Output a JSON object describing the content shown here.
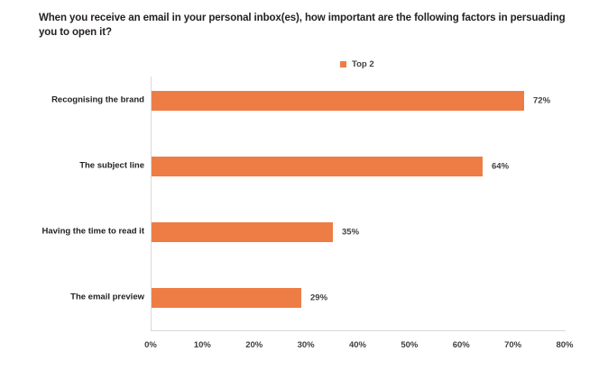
{
  "chart_data": {
    "type": "bar",
    "orientation": "horizontal",
    "title": "When you receive an email in your personal inbox(es), how important are the following factors in persuading you to open it?",
    "categories": [
      "Recognising the brand",
      "The subject line",
      "Having the time to read it",
      "The email preview"
    ],
    "series": [
      {
        "name": "Top 2",
        "values": [
          72,
          64,
          35,
          29
        ]
      }
    ],
    "data_labels": [
      "72%",
      "64%",
      "35%",
      "29%"
    ],
    "x_tick_labels": [
      "0%",
      "10%",
      "20%",
      "30%",
      "40%",
      "50%",
      "60%",
      "70%",
      "80%"
    ],
    "xlim": [
      0,
      80
    ],
    "xlabel": "",
    "ylabel": "",
    "grid": false,
    "legend_position": "top-center",
    "colors": {
      "bar": "#ED7D45",
      "axis_line": "#D9D9D9",
      "tick_label": "#3F3F3F",
      "title_text": "#252122"
    }
  }
}
